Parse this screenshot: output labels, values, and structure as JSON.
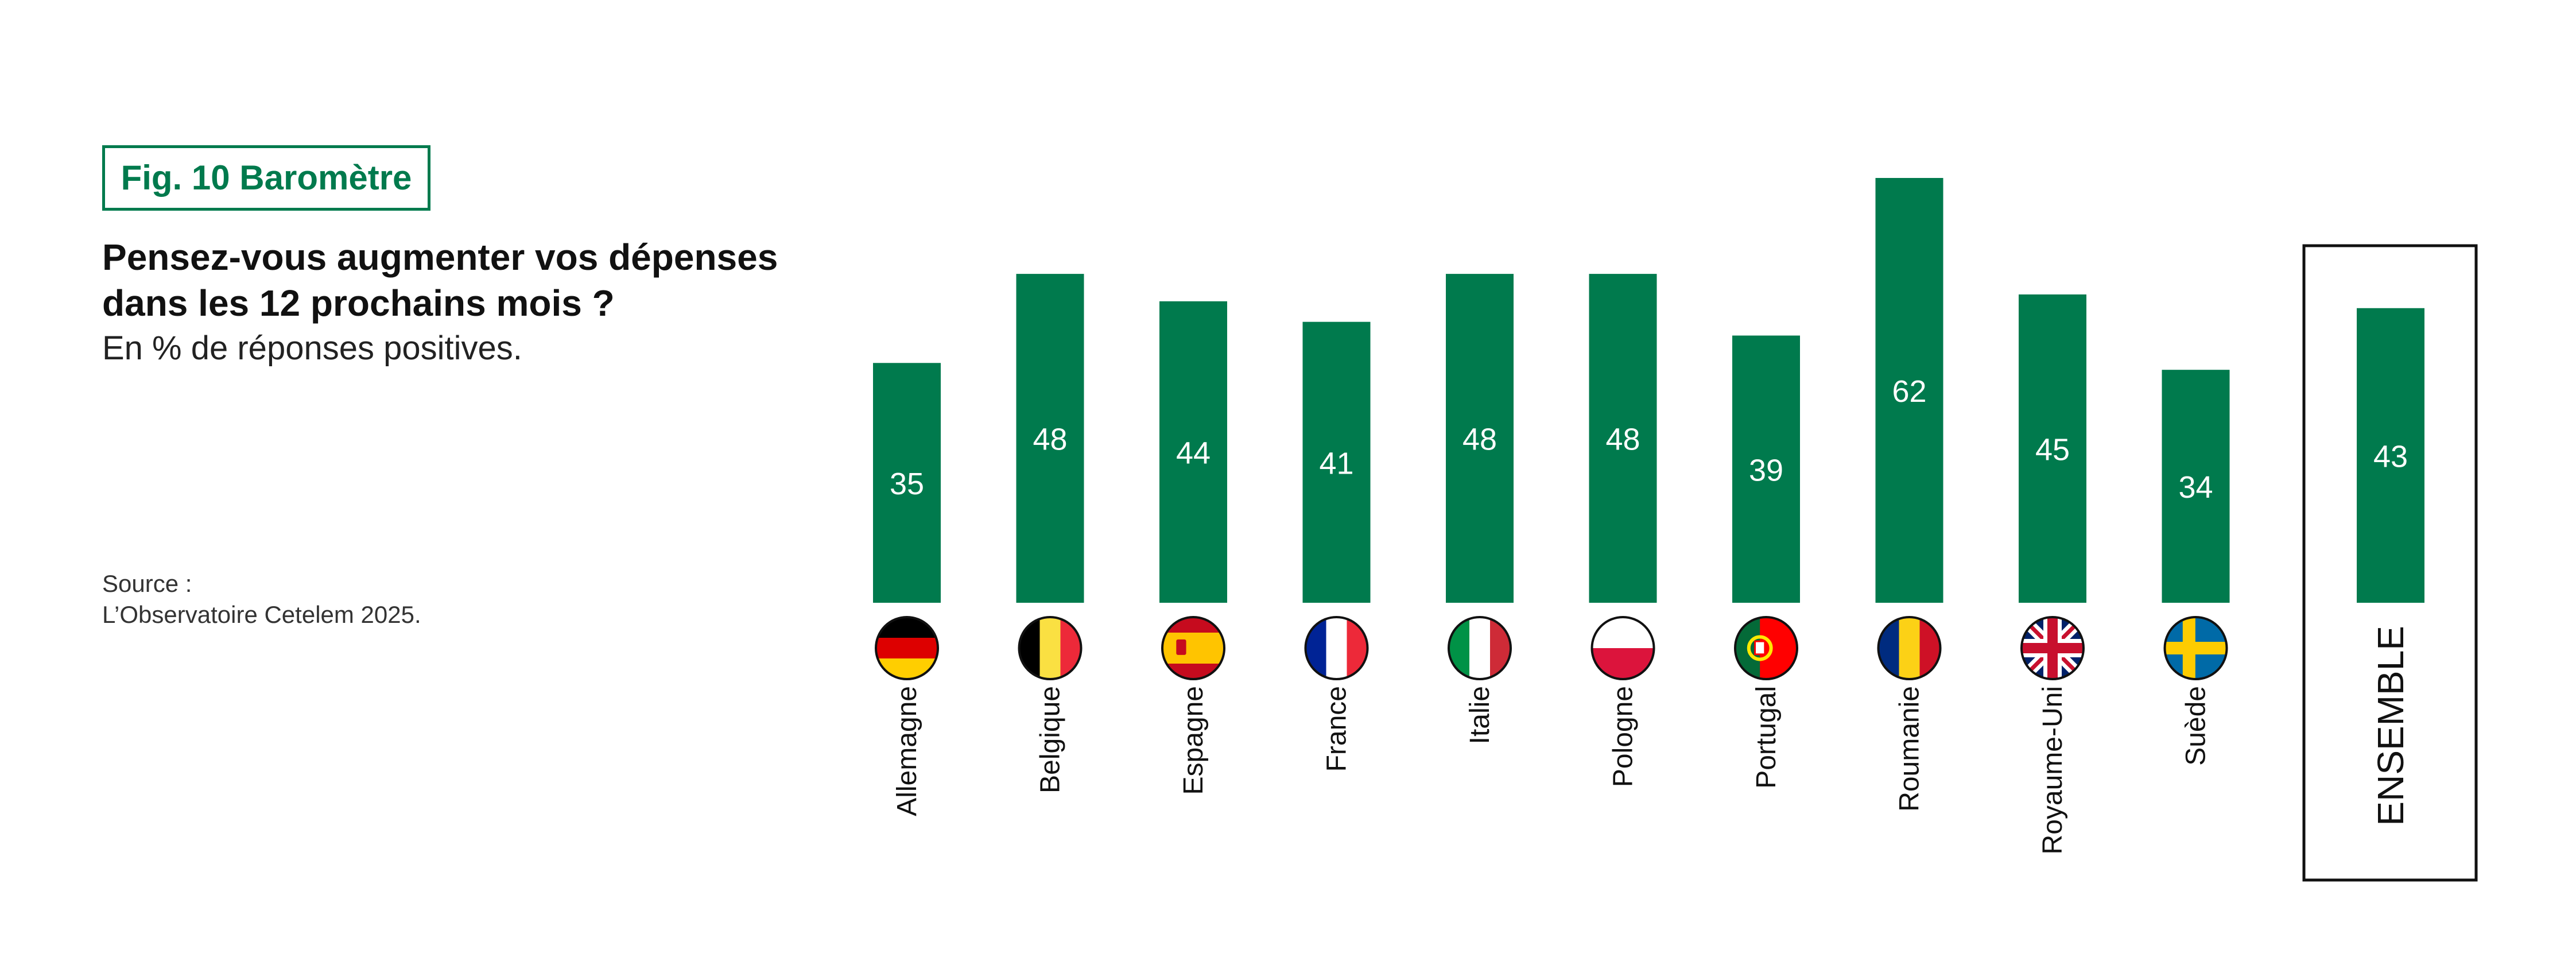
{
  "figure": {
    "tag": "Fig. 10 Baromètre",
    "title_line1": "Pensez-vous augmenter vos dépenses",
    "title_line2": "dans les 12 prochains mois ?",
    "subtitle": "En % de réponses positives.",
    "source_label": "Source :",
    "source_text": "L’Observatoire Cetelem 2025."
  },
  "colors": {
    "bar": "#007a4d",
    "accent": "#007a4d",
    "value_text": "#ffffff",
    "label_text": "#111111"
  },
  "chart_data": {
    "type": "bar",
    "categories": [
      "Allemagne",
      "Belgique",
      "Espagne",
      "France",
      "Italie",
      "Pologne",
      "Portugal",
      "Roumanie",
      "Royaume-Uni",
      "Suède"
    ],
    "values": [
      35,
      48,
      44,
      41,
      48,
      48,
      39,
      62,
      45,
      34
    ],
    "flag_icons": [
      "germany-flag-icon",
      "belgium-flag-icon",
      "spain-flag-icon",
      "france-flag-icon",
      "italy-flag-icon",
      "poland-flag-icon",
      "portugal-flag-icon",
      "romania-flag-icon",
      "uk-flag-icon",
      "sweden-flag-icon"
    ],
    "overall": {
      "label": "ENSEMBLE",
      "value": 43
    },
    "ylim": [
      0,
      62
    ],
    "grid": false,
    "data_labels": "inside-bar"
  }
}
